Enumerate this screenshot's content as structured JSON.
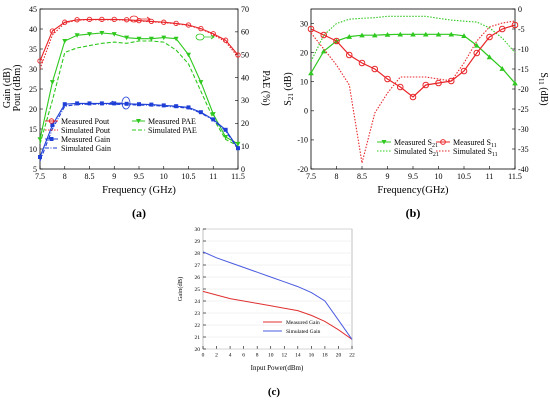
{
  "panels": {
    "a": {
      "caption": "(a)",
      "xlabel": "Frequency (GHz)",
      "ylabel_left": "Gain (dB)",
      "ylabel_left2": "Pout (dBm)",
      "ylabel_right": "PAE (%)",
      "x_ticks": [
        "7.5",
        "8",
        "8.5",
        "9",
        "9.5",
        "10",
        "10.5",
        "11",
        "11.5"
      ],
      "y_left_ticks": [
        "5",
        "10",
        "15",
        "20",
        "25",
        "30",
        "35",
        "40",
        "45"
      ],
      "y_right_ticks": [
        "0",
        "10",
        "20",
        "30",
        "40",
        "50",
        "60",
        "70"
      ],
      "legend": [
        "Measured Pout",
        "Measured PAE",
        "Simulated Pout",
        "Simulated PAE",
        "Measured Gain",
        "",
        "Simulated Gain",
        ""
      ]
    },
    "b": {
      "caption": "(b)",
      "xlabel": "Frequency(GHz)",
      "ylabel_left": "S21 (dB)",
      "ylabel_right": "S11 (dB)",
      "x_ticks": [
        "7.5",
        "8",
        "8.5",
        "9",
        "9.5",
        "10",
        "10.5",
        "11",
        "11.5"
      ],
      "y_left_ticks": [
        "-20",
        "-10",
        "0",
        "10",
        "20",
        "30"
      ],
      "y_right_ticks": [
        "0",
        "-5",
        "-10",
        "-15",
        "-20",
        "-25",
        "-30",
        "-35",
        "-40"
      ],
      "legend": [
        "Measured S21",
        "Measured S11",
        "Simulated S21",
        "Simulated S11"
      ]
    },
    "c": {
      "caption": "(c)",
      "xlabel": "Input Power(dBm)",
      "ylabel": "Gain(dB)",
      "x_ticks": [
        "0",
        "2",
        "4",
        "6",
        "8",
        "10",
        "12",
        "14",
        "16",
        "18",
        "20",
        "22"
      ],
      "y_ticks": [
        "20",
        "21",
        "22",
        "23",
        "24",
        "25",
        "26",
        "27",
        "28",
        "29",
        "30"
      ],
      "legend": [
        "Measured Gain",
        "Simulated Gain"
      ]
    }
  },
  "chart_data": [
    {
      "type": "line",
      "x": [
        7.5,
        7.75,
        8.0,
        8.25,
        8.5,
        8.75,
        9.0,
        9.25,
        9.5,
        9.75,
        10.0,
        10.25,
        10.5,
        10.75,
        11.0,
        11.25,
        11.5
      ],
      "xlim": [
        7.5,
        11.5
      ],
      "ylim": [
        5,
        45
      ],
      "y2lim": [
        0,
        70
      ],
      "series": [
        {
          "name": "Measured Pout",
          "axis": "left",
          "color": "#e8262a",
          "values": [
            32,
            39.5,
            41.7,
            42.3,
            42.4,
            42.4,
            42.4,
            42.3,
            42.1,
            41.9,
            41.7,
            41.4,
            41.0,
            40.1,
            38.8,
            37.2,
            33.5
          ]
        },
        {
          "name": "Simulated Pout",
          "axis": "left",
          "color": "#e8262a",
          "values": [
            30,
            38.5,
            41.5,
            42.2,
            42.3,
            42.3,
            42.3,
            42.2,
            42.0,
            41.8,
            41.6,
            41.3,
            40.9,
            40.0,
            38.6,
            36.8,
            33
          ]
        },
        {
          "name": "Measured PAE",
          "axis": "right",
          "color": "#2ec81e",
          "values": [
            13,
            38,
            56,
            58.5,
            59,
            59.5,
            59,
            57.5,
            57,
            57,
            57.5,
            57,
            50,
            38,
            24,
            14,
            11
          ]
        },
        {
          "name": "Simulated PAE",
          "axis": "right",
          "color": "#2ec81e",
          "values": [
            11,
            30,
            51,
            53,
            54,
            55,
            55.5,
            55,
            56,
            56,
            55.5,
            52,
            46,
            34,
            22,
            13,
            10
          ]
        },
        {
          "name": "Measured Gain",
          "axis": "left",
          "color": "#1f3fd6",
          "values": [
            8,
            16,
            21.2,
            21.4,
            21.4,
            21.4,
            21.4,
            21.3,
            21.2,
            21.1,
            20.9,
            20.7,
            20.4,
            19.2,
            17.4,
            14.8,
            10.2
          ]
        },
        {
          "name": "Simulated Gain",
          "axis": "left",
          "color": "#1f3fd6",
          "values": [
            7,
            15,
            20.7,
            21.1,
            21.2,
            21.2,
            21.2,
            21.1,
            21.0,
            20.9,
            20.7,
            20.5,
            20.2,
            19.0,
            17.2,
            14.5,
            10
          ]
        }
      ]
    },
    {
      "type": "line",
      "x": [
        7.5,
        7.75,
        8.0,
        8.25,
        8.5,
        8.75,
        9.0,
        9.25,
        9.5,
        9.75,
        10.0,
        10.25,
        10.5,
        10.75,
        11.0,
        11.25,
        11.5
      ],
      "xlim": [
        7.5,
        11.5
      ],
      "ylim": [
        -20,
        35
      ],
      "y2lim": [
        -40,
        0
      ],
      "series": [
        {
          "name": "Measured S21",
          "axis": "left",
          "color": "#2ec81e",
          "values": [
            13,
            20.5,
            24,
            25.5,
            26,
            26,
            26.2,
            26.3,
            26.3,
            26.3,
            26.3,
            26.3,
            25.8,
            22.5,
            18.5,
            14.5,
            9.5
          ]
        },
        {
          "name": "Simulated S21",
          "axis": "left",
          "color": "#2ec81e",
          "values": [
            17,
            26,
            30,
            31.5,
            31.8,
            32,
            32.5,
            32.5,
            32.5,
            32.5,
            31.8,
            31.2,
            30.8,
            30.5,
            28.5,
            25,
            20
          ]
        },
        {
          "name": "Measured S11",
          "axis": "right",
          "color": "#e8262a",
          "values": [
            -5,
            -6.5,
            -8,
            -11.5,
            -13.5,
            -15,
            -17.5,
            -19.5,
            -22,
            -19,
            -18.5,
            -18,
            -15.5,
            -11,
            -7,
            -5,
            -4
          ]
        },
        {
          "name": "Simulated S11",
          "axis": "right",
          "color": "#e8262a",
          "values": [
            -6,
            -10,
            -14,
            -19,
            -38.5,
            -26,
            -21,
            -17,
            -17,
            -17,
            -17.5,
            -18,
            -13.5,
            -8,
            -4.5,
            -3.5,
            -3
          ]
        }
      ]
    },
    {
      "type": "line",
      "x": [
        0,
        2,
        4,
        6,
        8,
        10,
        12,
        14,
        16,
        18,
        20,
        22
      ],
      "xlim": [
        0,
        22
      ],
      "ylim": [
        20,
        30
      ],
      "series": [
        {
          "name": "Measured Gain",
          "color": "#e03030",
          "values": [
            24.8,
            24.5,
            24.2,
            24.0,
            23.8,
            23.6,
            23.4,
            23.2,
            22.8,
            22.3,
            21.6,
            20.8
          ]
        },
        {
          "name": "Simulated Gain",
          "color": "#4a5be0",
          "values": [
            28.1,
            27.6,
            27.2,
            26.8,
            26.4,
            26.0,
            25.6,
            25.2,
            24.7,
            24.0,
            22.4,
            20.8
          ]
        }
      ]
    }
  ]
}
